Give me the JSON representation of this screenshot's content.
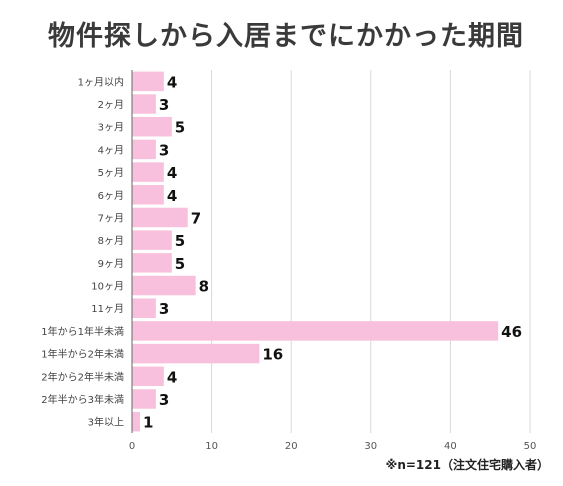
{
  "chart_data": {
    "type": "bar",
    "orientation": "horizontal",
    "title": "物件探しから入居までにかかった期間",
    "categories": [
      "1ヶ月以内",
      "2ヶ月",
      "3ヶ月",
      "4ヶ月",
      "5ヶ月",
      "6ヶ月",
      "7ヶ月",
      "8ヶ月",
      "9ヶ月",
      "10ヶ月",
      "11ヶ月",
      "1年から1年半未満",
      "1年半から2年未満",
      "2年から2年半未満",
      "2年半から3年未満",
      "3年以上"
    ],
    "values": [
      4,
      3,
      5,
      3,
      4,
      4,
      7,
      5,
      5,
      8,
      3,
      46,
      16,
      4,
      3,
      1
    ],
    "xlim": [
      0,
      50
    ],
    "xticks": [
      0,
      10,
      20,
      30,
      40,
      50
    ],
    "grid": true,
    "bar_color": "#f8c0dc",
    "footnote": "※n=121（注文住宅購入者）"
  }
}
